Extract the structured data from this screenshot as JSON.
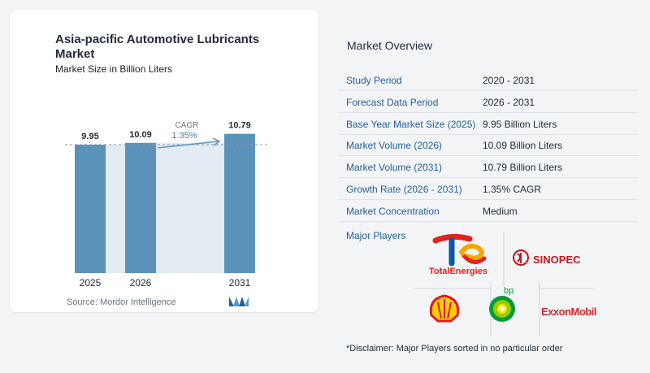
{
  "chart_data": {
    "type": "bar",
    "title": "Asia-pacific Automotive Lubricants Market",
    "subtitle": "Market Size in Billion Liters",
    "categories": [
      "2025",
      "2026",
      "2031"
    ],
    "values": [
      9.95,
      10.09,
      10.79
    ],
    "value_labels": [
      "9.95",
      "10.09",
      "10.79"
    ],
    "annotation": {
      "label": "CAGR",
      "value": "1.35%"
    },
    "bar_color": "#5b92ba",
    "source": "Source:  Mordor Intelligence"
  },
  "overview": {
    "title": "Market Overview",
    "rows": [
      {
        "label": "Study Period",
        "value": "2020 - 2031"
      },
      {
        "label": "Forecast Data Period",
        "value": "2026 - 2031"
      },
      {
        "label": "Base Year Market Size (2025)",
        "value": "9.95 Billion Liters"
      },
      {
        "label": "Market Volume (2026)",
        "value": "10.09 Billion Liters"
      },
      {
        "label": "Market Volume (2031)",
        "value": "10.79 Billion Liters"
      },
      {
        "label": "Growth Rate (2026 - 2031)",
        "value": "1.35% CAGR"
      },
      {
        "label": "Market Concentration",
        "value": "Medium"
      }
    ],
    "players_label": "Major Players",
    "players": [
      "TotalEnergies",
      "SINOPEC",
      "bp",
      "ExxonMobil"
    ],
    "disclaimer": "*Disclaimer: Major Players sorted in no particular order"
  },
  "colors": {
    "label_blue": "#1f5f9c",
    "bar": "#5b92ba",
    "band": "#e3ecf3"
  }
}
